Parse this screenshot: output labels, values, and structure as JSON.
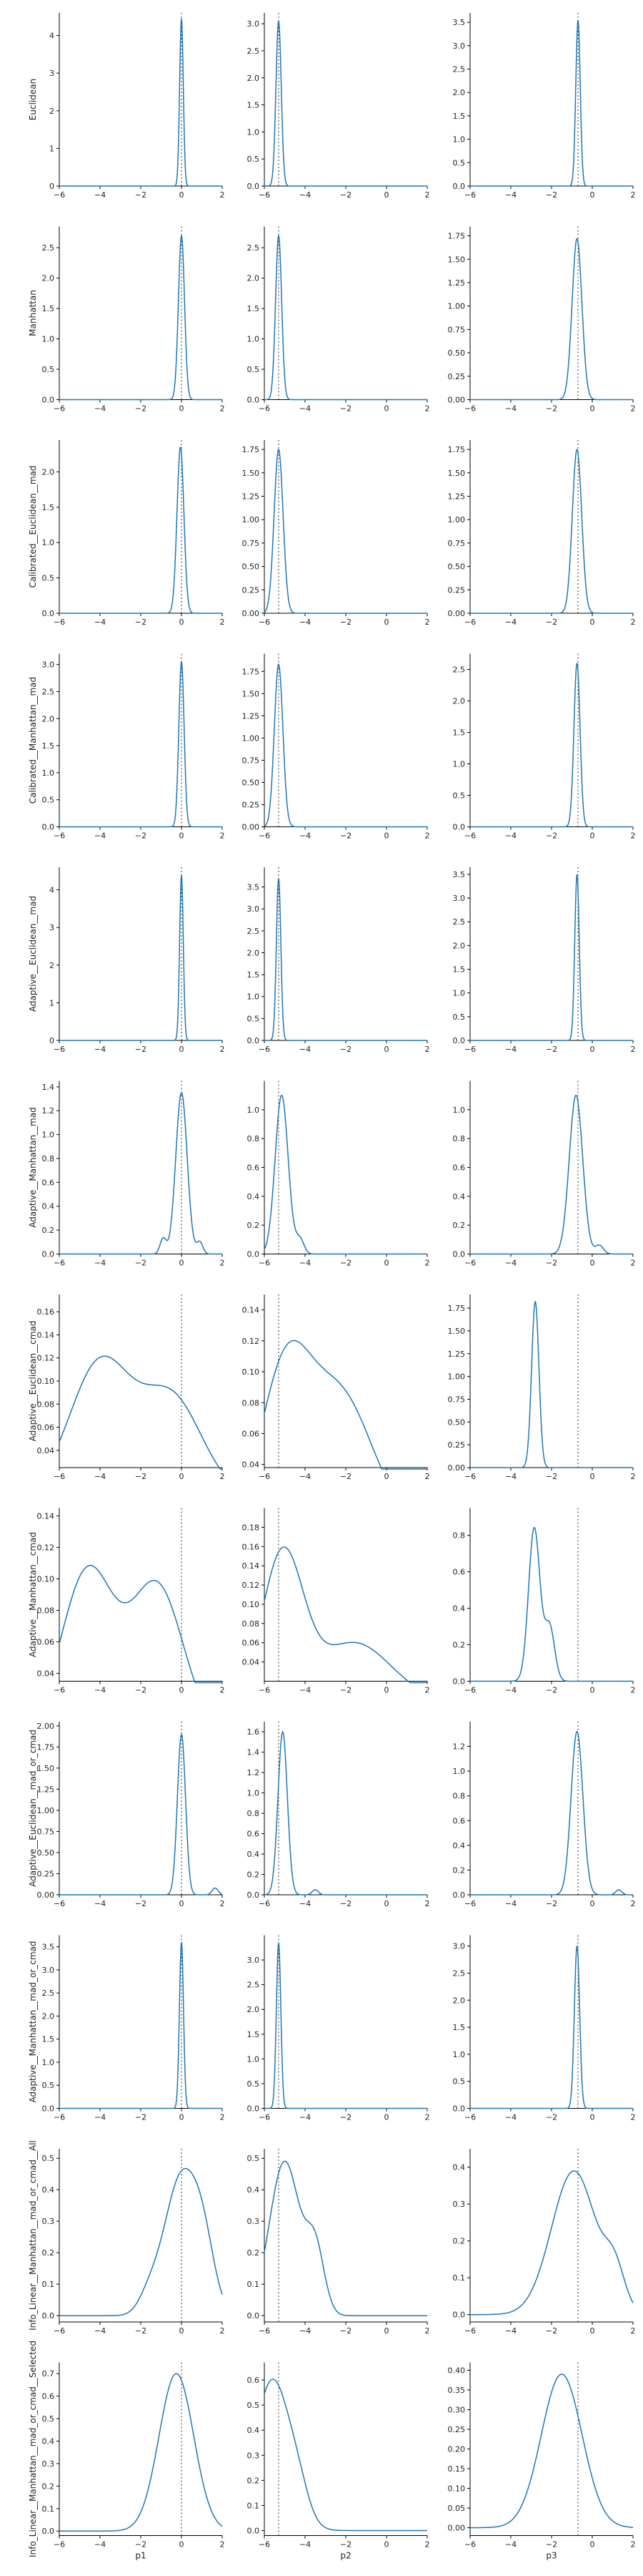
{
  "chart_data": {
    "type": "line",
    "layout": "grid 12 rows x 3 columns",
    "line_color": "#1f77b4",
    "ref_line_style": "dotted",
    "columns": [
      "p1",
      "p2",
      "p3"
    ],
    "reference_x": [
      0,
      -5.3,
      -0.7
    ],
    "xlim": [
      -6,
      2
    ],
    "xticks": [
      -6,
      -4,
      -2,
      0,
      2
    ],
    "rows": [
      {
        "name": "Euclidean",
        "panels": [
          {
            "ylim": [
              0,
              4.6
            ],
            "yticks": [
              0,
              1,
              2,
              3,
              4
            ],
            "peaks": [
              {
                "mu": 0,
                "sigma": 0.09,
                "amp": 4.45
              }
            ],
            "base": 0.0
          },
          {
            "ylim": [
              0,
              3.2
            ],
            "yticks": [
              0,
              0.5,
              1.0,
              1.5,
              2.0,
              2.5,
              3.0
            ],
            "peaks": [
              {
                "mu": -5.3,
                "sigma": 0.13,
                "amp": 3.05
              }
            ],
            "base": 0.0
          },
          {
            "ylim": [
              0,
              3.7
            ],
            "yticks": [
              0,
              0.5,
              1.0,
              1.5,
              2.0,
              2.5,
              3.0,
              3.5
            ],
            "peaks": [
              {
                "mu": -0.7,
                "sigma": 0.11,
                "amp": 3.55
              }
            ],
            "base": 0.0
          }
        ]
      },
      {
        "name": "Manhattan",
        "panels": [
          {
            "ylim": [
              0,
              2.85
            ],
            "yticks": [
              0,
              0.5,
              1.0,
              1.5,
              2.0,
              2.5
            ],
            "peaks": [
              {
                "mu": 0,
                "sigma": 0.15,
                "amp": 2.7
              }
            ],
            "base": 0.0
          },
          {
            "ylim": [
              0,
              2.85
            ],
            "yticks": [
              0,
              0.5,
              1.0,
              1.5,
              2.0,
              2.5
            ],
            "peaks": [
              {
                "mu": -5.3,
                "sigma": 0.15,
                "amp": 2.7
              }
            ],
            "base": 0.0
          },
          {
            "ylim": [
              0,
              1.85
            ],
            "yticks": [
              0,
              0.25,
              0.5,
              0.75,
              1.0,
              1.25,
              1.5,
              1.75
            ],
            "peaks": [
              {
                "mu": -0.75,
                "sigma": 0.24,
                "amp": 1.72
              }
            ],
            "base": 0.0
          }
        ]
      },
      {
        "name": "Calibrated__Euclidean__mad",
        "panels": [
          {
            "ylim": [
              0,
              2.45
            ],
            "yticks": [
              0,
              0.5,
              1.0,
              1.5,
              2.0
            ],
            "peaks": [
              {
                "mu": -0.05,
                "sigma": 0.17,
                "amp": 2.35
              }
            ],
            "base": 0.0
          },
          {
            "ylim": [
              0,
              1.85
            ],
            "yticks": [
              0,
              0.25,
              0.5,
              0.75,
              1.0,
              1.25,
              1.5,
              1.75
            ],
            "peaks": [
              {
                "mu": -5.3,
                "sigma": 0.22,
                "amp": 1.75
              }
            ],
            "base": 0.0
          },
          {
            "ylim": [
              0,
              1.85
            ],
            "yticks": [
              0,
              0.25,
              0.5,
              0.75,
              1.0,
              1.25,
              1.5,
              1.75
            ],
            "peaks": [
              {
                "mu": -0.75,
                "sigma": 0.23,
                "amp": 1.75
              }
            ],
            "base": 0.0
          }
        ]
      },
      {
        "name": "Calibrated__Manhattan__mad",
        "panels": [
          {
            "ylim": [
              0,
              3.2
            ],
            "yticks": [
              0,
              0.5,
              1.0,
              1.5,
              2.0,
              2.5,
              3.0
            ],
            "peaks": [
              {
                "mu": 0,
                "sigma": 0.13,
                "amp": 3.05
              }
            ],
            "base": 0.0
          },
          {
            "ylim": [
              0,
              1.95
            ],
            "yticks": [
              0,
              0.25,
              0.5,
              0.75,
              1.0,
              1.25,
              1.5,
              1.75
            ],
            "peaks": [
              {
                "mu": -5.3,
                "sigma": 0.21,
                "amp": 1.83
              }
            ],
            "base": 0.0
          },
          {
            "ylim": [
              0,
              2.75
            ],
            "yticks": [
              0,
              0.5,
              1.0,
              1.5,
              2.0,
              2.5
            ],
            "peaks": [
              {
                "mu": -0.75,
                "sigma": 0.15,
                "amp": 2.6
              }
            ],
            "base": 0.0
          }
        ]
      },
      {
        "name": "Adaptive__Euclidean__mad",
        "panels": [
          {
            "ylim": [
              0,
              4.6
            ],
            "yticks": [
              0,
              1,
              2,
              3,
              4
            ],
            "peaks": [
              {
                "mu": 0,
                "sigma": 0.09,
                "amp": 4.4
              }
            ],
            "base": 0.0
          },
          {
            "ylim": [
              0,
              3.95
            ],
            "yticks": [
              0,
              0.5,
              1.0,
              1.5,
              2.0,
              2.5,
              3.0,
              3.5
            ],
            "peaks": [
              {
                "mu": -5.3,
                "sigma": 0.11,
                "amp": 3.7
              }
            ],
            "base": 0.0
          },
          {
            "ylim": [
              0,
              3.65
            ],
            "yticks": [
              0,
              0.5,
              1.0,
              1.5,
              2.0,
              2.5,
              3.0,
              3.5
            ],
            "peaks": [
              {
                "mu": -0.75,
                "sigma": 0.11,
                "amp": 3.5
              }
            ],
            "base": 0.0
          }
        ]
      },
      {
        "name": "Adaptive__Manhattan__mad",
        "panels": [
          {
            "ylim": [
              0,
              1.45
            ],
            "yticks": [
              0,
              0.2,
              0.4,
              0.6,
              0.8,
              1.0,
              1.2,
              1.4
            ],
            "peaks": [
              {
                "mu": 0,
                "sigma": 0.28,
                "amp": 1.35
              },
              {
                "mu": -0.9,
                "sigma": 0.15,
                "amp": 0.13
              },
              {
                "mu": 0.9,
                "sigma": 0.15,
                "amp": 0.1
              }
            ],
            "base": 0.0
          },
          {
            "ylim": [
              0,
              1.2
            ],
            "yticks": [
              0,
              0.2,
              0.4,
              0.6,
              0.8,
              1.0
            ],
            "peaks": [
              {
                "mu": -5.15,
                "sigma": 0.32,
                "amp": 1.1
              },
              {
                "mu": -4.25,
                "sigma": 0.2,
                "amp": 0.1
              }
            ],
            "base": 0.0
          },
          {
            "ylim": [
              0,
              1.2
            ],
            "yticks": [
              0,
              0.2,
              0.4,
              0.6,
              0.8,
              1.0
            ],
            "peaks": [
              {
                "mu": -0.8,
                "sigma": 0.33,
                "amp": 1.1
              },
              {
                "mu": 0.35,
                "sigma": 0.2,
                "amp": 0.06
              }
            ],
            "base": 0.0
          }
        ]
      },
      {
        "name": "Adaptive__Euclidean__cmad",
        "panels": [
          {
            "ylim": [
              0.025,
              0.175
            ],
            "yticks": [
              0.04,
              0.06,
              0.08,
              0.1,
              0.12,
              0.14,
              0.16
            ],
            "peaks": [
              {
                "mu": -4.0,
                "sigma": 1.5,
                "amp": 0.115
              },
              {
                "mu": -0.5,
                "sigma": 1.5,
                "amp": 0.085
              }
            ],
            "base": 0.0
          },
          {
            "ylim": [
              0.038,
              0.15
            ],
            "yticks": [
              0.04,
              0.06,
              0.08,
              0.1,
              0.12,
              0.14
            ],
            "peaks": [
              {
                "mu": -5.0,
                "sigma": 1.2,
                "amp": 0.095
              },
              {
                "mu": -2.3,
                "sigma": 1.6,
                "amp": 0.085
              }
            ],
            "base": 0.0
          },
          {
            "ylim": [
              0,
              1.9
            ],
            "yticks": [
              0,
              0.25,
              0.5,
              0.75,
              1.0,
              1.25,
              1.5,
              1.75
            ],
            "peaks": [
              {
                "mu": -2.8,
                "sigma": 0.18,
                "amp": 1.82
              }
            ],
            "base": 0.0
          }
        ]
      },
      {
        "name": "Adaptive__Manhattan__cmad",
        "panels": [
          {
            "ylim": [
              0.035,
              0.145
            ],
            "yticks": [
              0.04,
              0.06,
              0.08,
              0.1,
              0.12,
              0.14
            ],
            "peaks": [
              {
                "mu": -4.6,
                "sigma": 1.3,
                "amp": 0.105
              },
              {
                "mu": -1.2,
                "sigma": 1.3,
                "amp": 0.095
              }
            ],
            "base": 0.0
          },
          {
            "ylim": [
              0.02,
              0.2
            ],
            "yticks": [
              0.04,
              0.06,
              0.08,
              0.1,
              0.12,
              0.14,
              0.16,
              0.18
            ],
            "peaks": [
              {
                "mu": -5.1,
                "sigma": 1.0,
                "amp": 0.15
              },
              {
                "mu": -1.6,
                "sigma": 1.8,
                "amp": 0.06
              }
            ],
            "base": 0.0
          },
          {
            "ylim": [
              0,
              0.95
            ],
            "yticks": [
              0,
              0.2,
              0.4,
              0.6,
              0.8
            ],
            "peaks": [
              {
                "mu": -2.85,
                "sigma": 0.28,
                "amp": 0.84
              },
              {
                "mu": -2.1,
                "sigma": 0.25,
                "amp": 0.3
              }
            ],
            "base": 0.0
          }
        ]
      },
      {
        "name": "Adaptive__Euclidean__mad_or_cmad",
        "panels": [
          {
            "ylim": [
              0,
              2.05
            ],
            "yticks": [
              0,
              0.25,
              0.5,
              0.75,
              1.0,
              1.25,
              1.5,
              1.75,
              2.0
            ],
            "peaks": [
              {
                "mu": 0,
                "sigma": 0.2,
                "amp": 1.9
              },
              {
                "mu": 1.65,
                "sigma": 0.15,
                "amp": 0.08
              }
            ],
            "base": 0.0
          },
          {
            "ylim": [
              0,
              1.7
            ],
            "yticks": [
              0,
              0.2,
              0.4,
              0.6,
              0.8,
              1.0,
              1.2,
              1.4,
              1.6
            ],
            "peaks": [
              {
                "mu": -5.1,
                "sigma": 0.23,
                "amp": 1.6
              },
              {
                "mu": -3.5,
                "sigma": 0.15,
                "amp": 0.05
              }
            ],
            "base": 0.0
          },
          {
            "ylim": [
              0,
              1.4
            ],
            "yticks": [
              0,
              0.2,
              0.4,
              0.6,
              0.8,
              1.0,
              1.2
            ],
            "peaks": [
              {
                "mu": -0.75,
                "sigma": 0.29,
                "amp": 1.32
              },
              {
                "mu": 1.3,
                "sigma": 0.15,
                "amp": 0.04
              }
            ],
            "base": 0.0
          }
        ]
      },
      {
        "name": "Adaptive__Manhattan__mad_or_cmad",
        "panels": [
          {
            "ylim": [
              0,
              3.75
            ],
            "yticks": [
              0,
              0.5,
              1.0,
              1.5,
              2.0,
              2.5,
              3.0,
              3.5
            ],
            "peaks": [
              {
                "mu": 0,
                "sigma": 0.1,
                "amp": 3.6
              }
            ],
            "base": 0.0
          },
          {
            "ylim": [
              0,
              3.5
            ],
            "yticks": [
              0,
              0.5,
              1.0,
              1.5,
              2.0,
              2.5,
              3.0
            ],
            "peaks": [
              {
                "mu": -5.3,
                "sigma": 0.11,
                "amp": 3.35
              }
            ],
            "base": 0.0
          },
          {
            "ylim": [
              0,
              3.2
            ],
            "yticks": [
              0,
              0.5,
              1.0,
              1.5,
              2.0,
              2.5,
              3.0
            ],
            "peaks": [
              {
                "mu": -0.75,
                "sigma": 0.13,
                "amp": 3.0
              }
            ],
            "base": 0.0
          }
        ]
      },
      {
        "name": "Info_Linear__Manhattan__mad_or_cmad__All",
        "panels": [
          {
            "ylim": [
              -0.02,
              0.53
            ],
            "yticks": [
              0,
              0.1,
              0.2,
              0.3,
              0.4,
              0.5
            ],
            "peaks": [
              {
                "mu": 0,
                "sigma": 0.85,
                "amp": 0.44
              },
              {
                "mu": 1.1,
                "sigma": 0.55,
                "amp": 0.15
              },
              {
                "mu": -1.6,
                "sigma": 0.5,
                "amp": 0.05
              }
            ],
            "base": 0.0
          },
          {
            "ylim": [
              -0.02,
              0.53
            ],
            "yticks": [
              0,
              0.1,
              0.2,
              0.3,
              0.4,
              0.5
            ],
            "peaks": [
              {
                "mu": -5.0,
                "sigma": 0.75,
                "amp": 0.49
              },
              {
                "mu": -3.5,
                "sigma": 0.45,
                "amp": 0.2
              }
            ],
            "base": 0.0
          },
          {
            "ylim": [
              -0.02,
              0.45
            ],
            "yticks": [
              0,
              0.1,
              0.2,
              0.3,
              0.4
            ],
            "peaks": [
              {
                "mu": -0.9,
                "sigma": 1.1,
                "amp": 0.39
              },
              {
                "mu": 1.1,
                "sigma": 0.5,
                "amp": 0.1
              }
            ],
            "base": 0.0
          }
        ]
      },
      {
        "name": "Info_Linear__Manhattan__mad_or_cmad__Selected",
        "panels": [
          {
            "ylim": [
              -0.02,
              0.75
            ],
            "yticks": [
              0,
              0.1,
              0.2,
              0.3,
              0.4,
              0.5,
              0.6,
              0.7
            ],
            "peaks": [
              {
                "mu": -0.25,
                "sigma": 0.85,
                "amp": 0.7
              }
            ],
            "base": 0.0
          },
          {
            "ylim": [
              -0.02,
              0.67
            ],
            "yticks": [
              0,
              0.1,
              0.2,
              0.3,
              0.4,
              0.5,
              0.6
            ],
            "peaks": [
              {
                "mu": -5.6,
                "sigma": 0.9,
                "amp": 0.6
              },
              {
                "mu": -4.3,
                "sigma": 0.5,
                "amp": 0.08
              }
            ],
            "base": 0.0
          },
          {
            "ylim": [
              -0.02,
              0.42
            ],
            "yticks": [
              0,
              0.05,
              0.1,
              0.15,
              0.2,
              0.25,
              0.3,
              0.35,
              0.4
            ],
            "peaks": [
              {
                "mu": -1.5,
                "sigma": 1.0,
                "amp": 0.39
              }
            ],
            "base": 0.0
          }
        ]
      }
    ]
  }
}
